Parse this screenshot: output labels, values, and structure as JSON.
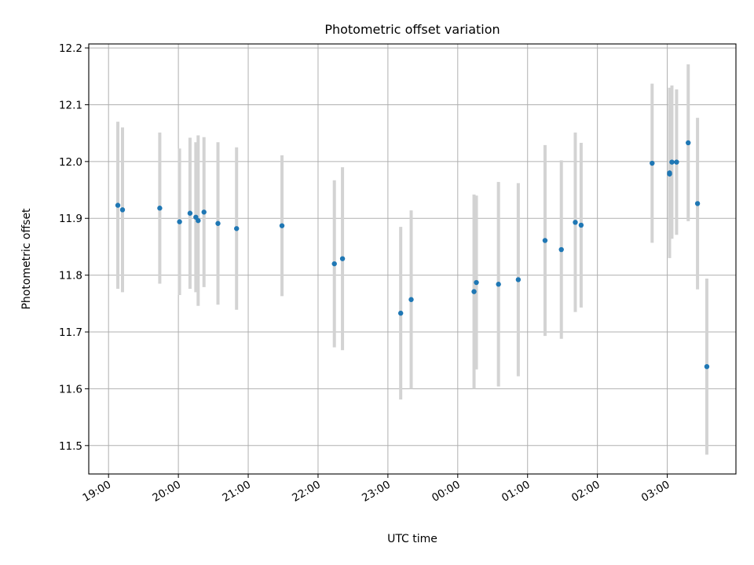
{
  "chart_data": {
    "type": "scatter",
    "title": "Photometric offset variation",
    "xlabel": "UTC time",
    "ylabel": "Photometric offset",
    "x_ticks": [
      "19:00",
      "20:00",
      "21:00",
      "22:00",
      "23:00",
      "00:00",
      "01:00",
      "02:00",
      "03:00"
    ],
    "x_tick_times": [
      "2000-01-01T19:00",
      "2000-01-01T20:00",
      "2000-01-01T21:00",
      "2000-01-01T22:00",
      "2000-01-01T23:00",
      "2000-01-02T00:00",
      "2000-01-02T01:00",
      "2000-01-02T02:00",
      "2000-01-02T03:00"
    ],
    "xlim": [
      "2000-01-01T18:43",
      "2000-01-02T03:59"
    ],
    "y_ticks": [
      11.5,
      11.6,
      11.7,
      11.8,
      11.9,
      12.0,
      12.1,
      12.2
    ],
    "ylim": [
      11.45,
      12.207
    ],
    "grid": true,
    "marker_color": "#1f77b4",
    "errorbar_color": "#d3d3d3",
    "points": [
      {
        "t": "2000-01-01T19:08",
        "y": 11.923,
        "err": 0.147
      },
      {
        "t": "2000-01-01T19:12",
        "y": 11.915,
        "err": 0.145
      },
      {
        "t": "2000-01-01T19:44",
        "y": 11.918,
        "err": 0.133
      },
      {
        "t": "2000-01-01T20:01",
        "y": 11.894,
        "err": 0.129
      },
      {
        "t": "2000-01-01T20:10",
        "y": 11.909,
        "err": 0.133
      },
      {
        "t": "2000-01-01T20:15",
        "y": 11.902,
        "err": 0.132
      },
      {
        "t": "2000-01-01T20:17",
        "y": 11.896,
        "err": 0.15
      },
      {
        "t": "2000-01-01T20:22",
        "y": 11.911,
        "err": 0.132
      },
      {
        "t": "2000-01-01T20:34",
        "y": 11.891,
        "err": 0.143
      },
      {
        "t": "2000-01-01T20:50",
        "y": 11.882,
        "err": 0.143
      },
      {
        "t": "2000-01-01T21:29",
        "y": 11.887,
        "err": 0.124
      },
      {
        "t": "2000-01-01T22:14",
        "y": 11.82,
        "err": 0.147
      },
      {
        "t": "2000-01-01T22:21",
        "y": 11.829,
        "err": 0.161
      },
      {
        "t": "2000-01-01T23:11",
        "y": 11.733,
        "err": 0.152
      },
      {
        "t": "2000-01-01T23:20",
        "y": 11.757,
        "err": 0.157
      },
      {
        "t": "2000-01-02T00:14",
        "y": 11.771,
        "err": 0.171
      },
      {
        "t": "2000-01-02T00:16",
        "y": 11.787,
        "err": 0.153
      },
      {
        "t": "2000-01-02T00:35",
        "y": 11.784,
        "err": 0.18
      },
      {
        "t": "2000-01-02T00:52",
        "y": 11.792,
        "err": 0.17
      },
      {
        "t": "2000-01-02T01:15",
        "y": 11.861,
        "err": 0.168
      },
      {
        "t": "2000-01-02T01:29",
        "y": 11.845,
        "err": 0.157
      },
      {
        "t": "2000-01-02T01:41",
        "y": 11.893,
        "err": 0.158
      },
      {
        "t": "2000-01-02T01:46",
        "y": 11.888,
        "err": 0.145
      },
      {
        "t": "2000-01-02T02:47",
        "y": 11.997,
        "err": 0.14
      },
      {
        "t": "2000-01-02T03:02",
        "y": 11.98,
        "err": 0.15
      },
      {
        "t": "2000-01-02T03:02",
        "y": 11.978,
        "err": 0.115
      },
      {
        "t": "2000-01-02T03:04",
        "y": 11.999,
        "err": 0.135
      },
      {
        "t": "2000-01-02T03:08",
        "y": 11.999,
        "err": 0.128
      },
      {
        "t": "2000-01-02T03:18",
        "y": 12.033,
        "err": 0.138
      },
      {
        "t": "2000-01-02T03:26",
        "y": 11.926,
        "err": 0.151
      },
      {
        "t": "2000-01-02T03:34",
        "y": 11.639,
        "err": 0.155
      }
    ]
  }
}
